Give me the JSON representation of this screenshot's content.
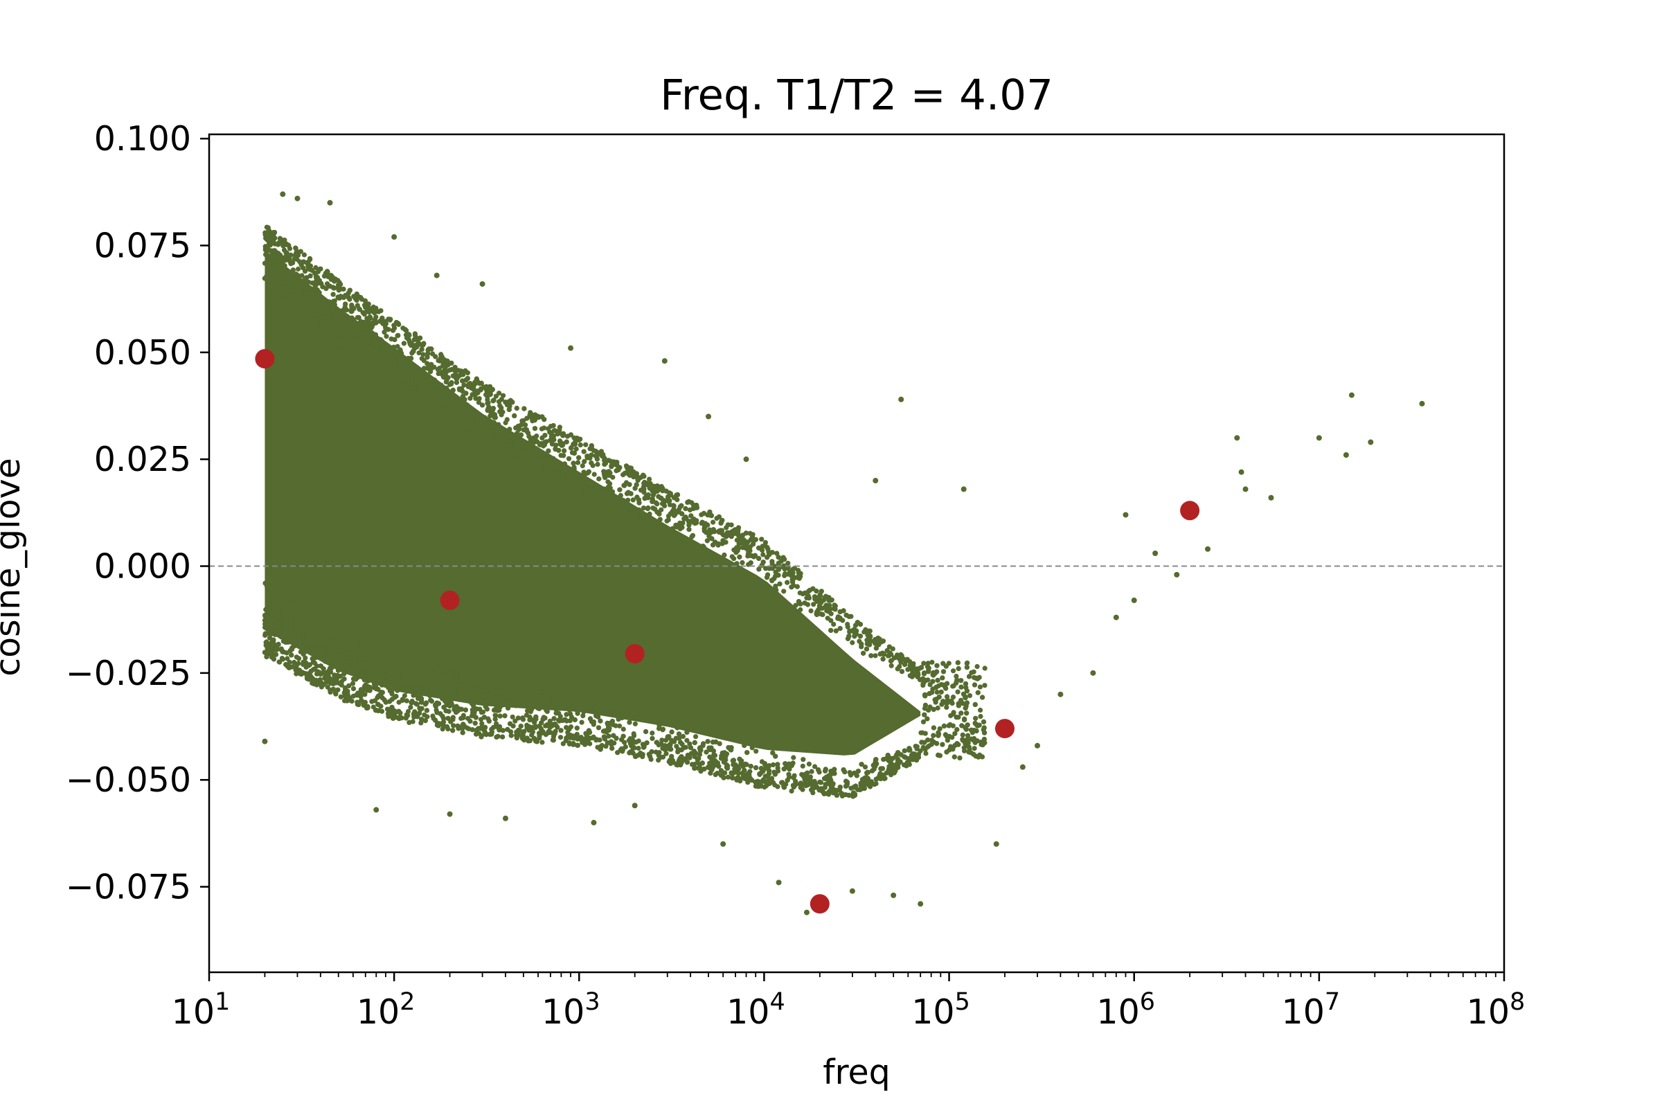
{
  "chart_data": {
    "type": "scatter",
    "title": "Freq. T1/T2 = 4.07",
    "xlabel": "freq",
    "ylabel": "cosine_glove",
    "xscale": "log",
    "xlim": [
      10,
      100000000
    ],
    "ylim": [
      -0.095,
      0.101
    ],
    "x_ticks": [
      {
        "value": 10,
        "base": "10",
        "exp": "1"
      },
      {
        "value": 100,
        "base": "10",
        "exp": "2"
      },
      {
        "value": 1000,
        "base": "10",
        "exp": "3"
      },
      {
        "value": 10000,
        "base": "10",
        "exp": "4"
      },
      {
        "value": 100000,
        "base": "10",
        "exp": "5"
      },
      {
        "value": 1000000,
        "base": "10",
        "exp": "6"
      },
      {
        "value": 10000000,
        "base": "10",
        "exp": "7"
      },
      {
        "value": 100000000,
        "base": "10",
        "exp": "8"
      }
    ],
    "y_ticks": [
      {
        "value": 0.1,
        "label": "0.100"
      },
      {
        "value": 0.075,
        "label": "0.075"
      },
      {
        "value": 0.05,
        "label": "0.050"
      },
      {
        "value": 0.025,
        "label": "0.025"
      },
      {
        "value": 0.0,
        "label": "0.000"
      },
      {
        "value": -0.025,
        "label": "−0.025"
      },
      {
        "value": -0.05,
        "label": "−0.050"
      },
      {
        "value": -0.075,
        "label": "−0.075"
      }
    ],
    "reference_line": {
      "y": 0.0,
      "style": "dashed",
      "color": "#888888"
    },
    "grid": false,
    "series": [
      {
        "marker": "dense-cloud",
        "color": "#556b2f",
        "density_profile": [
          {
            "x": 20,
            "y_low": -0.021,
            "y_high": 0.08
          },
          {
            "x": 50,
            "y_low": -0.031,
            "y_high": 0.067
          },
          {
            "x": 100,
            "y_low": -0.036,
            "y_high": 0.058
          },
          {
            "x": 300,
            "y_low": -0.04,
            "y_high": 0.043
          },
          {
            "x": 1000,
            "y_low": -0.042,
            "y_high": 0.03
          },
          {
            "x": 3000,
            "y_low": -0.046,
            "y_high": 0.018
          },
          {
            "x": 10000,
            "y_low": -0.052,
            "y_high": 0.006
          },
          {
            "x": 30000,
            "y_low": -0.054,
            "y_high": -0.012
          },
          {
            "x": 70000,
            "y_low": -0.045,
            "y_high": -0.024
          }
        ],
        "outliers": [
          {
            "x": 20,
            "y": -0.041
          },
          {
            "x": 25,
            "y": 0.087
          },
          {
            "x": 30,
            "y": 0.086
          },
          {
            "x": 45,
            "y": 0.085
          },
          {
            "x": 100,
            "y": 0.077
          },
          {
            "x": 170,
            "y": 0.068
          },
          {
            "x": 300,
            "y": 0.066
          },
          {
            "x": 900,
            "y": 0.051
          },
          {
            "x": 2900,
            "y": 0.048
          },
          {
            "x": 5000,
            "y": 0.035
          },
          {
            "x": 8000,
            "y": 0.025
          },
          {
            "x": 55000,
            "y": 0.039
          },
          {
            "x": 40000,
            "y": 0.02
          },
          {
            "x": 120000,
            "y": 0.018
          },
          {
            "x": 900000,
            "y": 0.012
          },
          {
            "x": 1300000,
            "y": 0.003
          },
          {
            "x": 1700000,
            "y": -0.002
          },
          {
            "x": 2500000,
            "y": 0.004
          },
          {
            "x": 3600000,
            "y": 0.03
          },
          {
            "x": 3800000,
            "y": 0.022
          },
          {
            "x": 4000000,
            "y": 0.018
          },
          {
            "x": 5500000,
            "y": 0.016
          },
          {
            "x": 10000000,
            "y": 0.03
          },
          {
            "x": 14000000,
            "y": 0.026
          },
          {
            "x": 15000000,
            "y": 0.04
          },
          {
            "x": 19000000,
            "y": 0.029
          },
          {
            "x": 36000000,
            "y": 0.038
          },
          {
            "x": 1000000,
            "y": -0.008
          },
          {
            "x": 800000,
            "y": -0.012
          },
          {
            "x": 600000,
            "y": -0.025
          },
          {
            "x": 400000,
            "y": -0.03
          },
          {
            "x": 300000,
            "y": -0.042
          },
          {
            "x": 250000,
            "y": -0.047
          },
          {
            "x": 180000,
            "y": -0.065
          },
          {
            "x": 70000,
            "y": -0.079
          },
          {
            "x": 50000,
            "y": -0.077
          },
          {
            "x": 30000,
            "y": -0.076
          },
          {
            "x": 17000,
            "y": -0.081
          },
          {
            "x": 12000,
            "y": -0.074
          },
          {
            "x": 6000,
            "y": -0.065
          },
          {
            "x": 2000,
            "y": -0.056
          },
          {
            "x": 1200,
            "y": -0.06
          },
          {
            "x": 400,
            "y": -0.059
          },
          {
            "x": 200,
            "y": -0.058
          },
          {
            "x": 80,
            "y": -0.057
          }
        ]
      },
      {
        "marker": "circle",
        "color": "#b22222",
        "points": [
          {
            "x": 20,
            "y": 0.0485
          },
          {
            "x": 200,
            "y": -0.008
          },
          {
            "x": 2000,
            "y": -0.0205
          },
          {
            "x": 20000,
            "y": -0.079
          },
          {
            "x": 200000,
            "y": -0.038
          },
          {
            "x": 2000000,
            "y": 0.013
          }
        ]
      }
    ]
  }
}
